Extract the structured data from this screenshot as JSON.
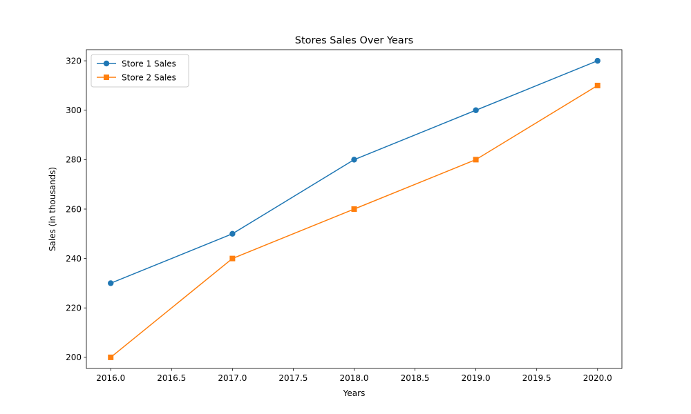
{
  "chart_data": {
    "type": "line",
    "title": "Stores Sales Over Years",
    "xlabel": "Years",
    "ylabel": "Sales (in thousands)",
    "x": [
      2016,
      2017,
      2018,
      2019,
      2020
    ],
    "xlim": [
      2015.8,
      2020.2
    ],
    "ylim": [
      195.5,
      324.5
    ],
    "x_ticks": [
      2016.0,
      2016.5,
      2017.0,
      2017.5,
      2018.0,
      2018.5,
      2019.0,
      2019.5,
      2020.0
    ],
    "x_tick_labels": [
      "2016.0",
      "2016.5",
      "2017.0",
      "2017.5",
      "2018.0",
      "2018.5",
      "2019.0",
      "2019.5",
      "2020.0"
    ],
    "y_ticks": [
      200,
      220,
      240,
      260,
      280,
      300,
      320
    ],
    "y_tick_labels": [
      "200",
      "220",
      "240",
      "260",
      "280",
      "300",
      "320"
    ],
    "grid": false,
    "legend_position": "top-left",
    "series": [
      {
        "name": "Store 1 Sales",
        "values": [
          230,
          250,
          280,
          300,
          320
        ],
        "color": "#1f77b4",
        "marker": "circle"
      },
      {
        "name": "Store 2 Sales",
        "values": [
          200,
          240,
          260,
          280,
          310
        ],
        "color": "#ff7f0e",
        "marker": "square"
      }
    ]
  }
}
